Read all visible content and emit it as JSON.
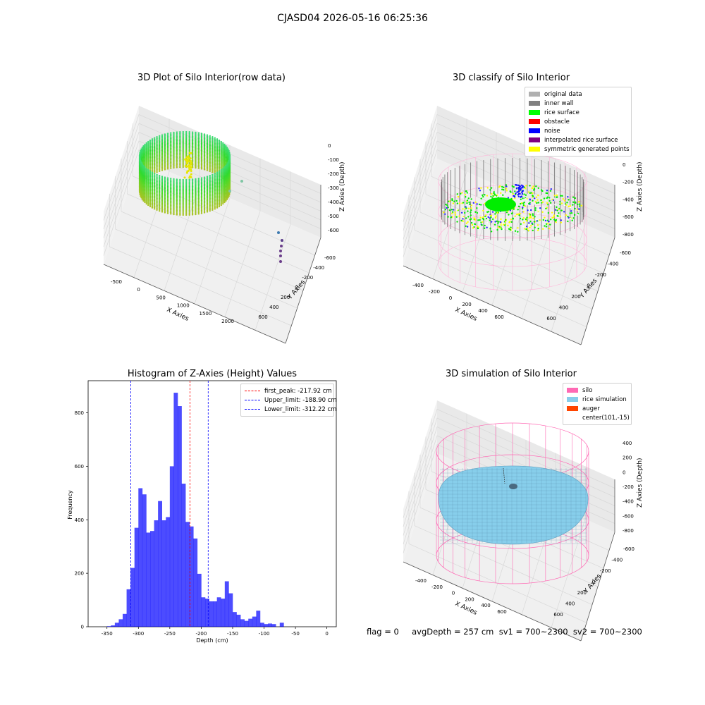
{
  "figure": {
    "suptitle": "CJASD04 2026-05-16 06:25:36",
    "footer": "flag = 0     avgDepth = 257 cm  sv1 = 700~2300  sv2 = 700~2300"
  },
  "panels": {
    "raw": {
      "title": "3D Plot of Silo Interior(row data)",
      "xlabel": "X Axies",
      "ylabel": "Y Axies",
      "zlabel": "Z Axies (Depth)",
      "xticks": [
        "-500",
        "0",
        "500",
        "1000",
        "1500",
        "2000"
      ],
      "yticks": [
        "-600",
        "-400",
        "-200",
        "0",
        "200",
        "400",
        "600"
      ],
      "zticks": [
        "0",
        "-100",
        "-200",
        "-300",
        "-400",
        "-500",
        "-600"
      ]
    },
    "classify": {
      "title": "3D classify of Silo Interior",
      "xlabel": "X Axies",
      "ylabel": "Y Axies",
      "zlabel": "Z Axies (Depth)",
      "xticks": [
        "-400",
        "-200",
        "0",
        "200",
        "400",
        "600"
      ],
      "yticks": [
        "-600",
        "-400",
        "-200",
        "0",
        "200",
        "400",
        "600"
      ],
      "zticks": [
        "200",
        "0",
        "-200",
        "-400",
        "-600",
        "-800"
      ],
      "legend": [
        {
          "label": "original data",
          "color": "#b0b0b0"
        },
        {
          "label": "inner wall",
          "color": "#808080"
        },
        {
          "label": "rice surface",
          "color": "#00ff00"
        },
        {
          "label": "obstacle",
          "color": "#ff0000"
        },
        {
          "label": "noise",
          "color": "#0000ff"
        },
        {
          "label": "interpolated rice surface",
          "color": "#800080"
        },
        {
          "label": "symmetric generated points",
          "color": "#ffff00"
        }
      ]
    },
    "simulation": {
      "title": "3D simulation of Silo Interior",
      "xlabel": "X Axies",
      "ylabel": "Y Axies",
      "zlabel": "Z Axies (Depth)",
      "xticks": [
        "-400",
        "-200",
        "0",
        "200",
        "400",
        "600"
      ],
      "yticks": [
        "-600",
        "-400",
        "-200",
        "0",
        "200",
        "400",
        "600"
      ],
      "zticks": [
        "400",
        "200",
        "0",
        "-200",
        "-400",
        "-600",
        "-800"
      ],
      "legend": [
        {
          "label": "silo",
          "color": "#ff69b4"
        },
        {
          "label": "rice simulation",
          "color": "#87ceeb"
        },
        {
          "label": "auger",
          "color": "#ff4500"
        },
        {
          "label": "center(101,-15)",
          "color": ""
        }
      ]
    }
  },
  "chart_data": [
    {
      "type": "bar",
      "title": "Histogram of Z-Axies (Height) Values",
      "xlabel": "Depth (cm)",
      "ylabel": "Frequency",
      "xlim": [
        -380,
        15
      ],
      "ylim": [
        0,
        920
      ],
      "xticks": [
        -350,
        -300,
        -250,
        -200,
        -150,
        -100,
        -50,
        0
      ],
      "yticks": [
        0,
        200,
        400,
        600,
        800
      ],
      "bin_width": 6.25,
      "bin_start": -350,
      "bar_color": "#0000ff",
      "values": [
        2,
        5,
        15,
        28,
        48,
        140,
        220,
        370,
        518,
        495,
        352,
        358,
        398,
        470,
        398,
        410,
        600,
        875,
        825,
        535,
        392,
        375,
        330,
        198,
        110,
        105,
        95,
        95,
        110,
        105,
        170,
        125,
        55,
        45,
        28,
        22,
        30,
        38,
        60,
        15,
        10,
        12,
        10,
        0,
        15
      ],
      "vlines": [
        {
          "label": "first_peak: -217.92 cm",
          "x": -217.92,
          "color": "#ff0000"
        },
        {
          "label": "Upper_limit: -188.90 cm",
          "x": -188.9,
          "color": "#0000ff"
        },
        {
          "label": "Lower_limit: -312.22 cm",
          "x": -312.22,
          "color": "#0000ff"
        }
      ]
    }
  ]
}
